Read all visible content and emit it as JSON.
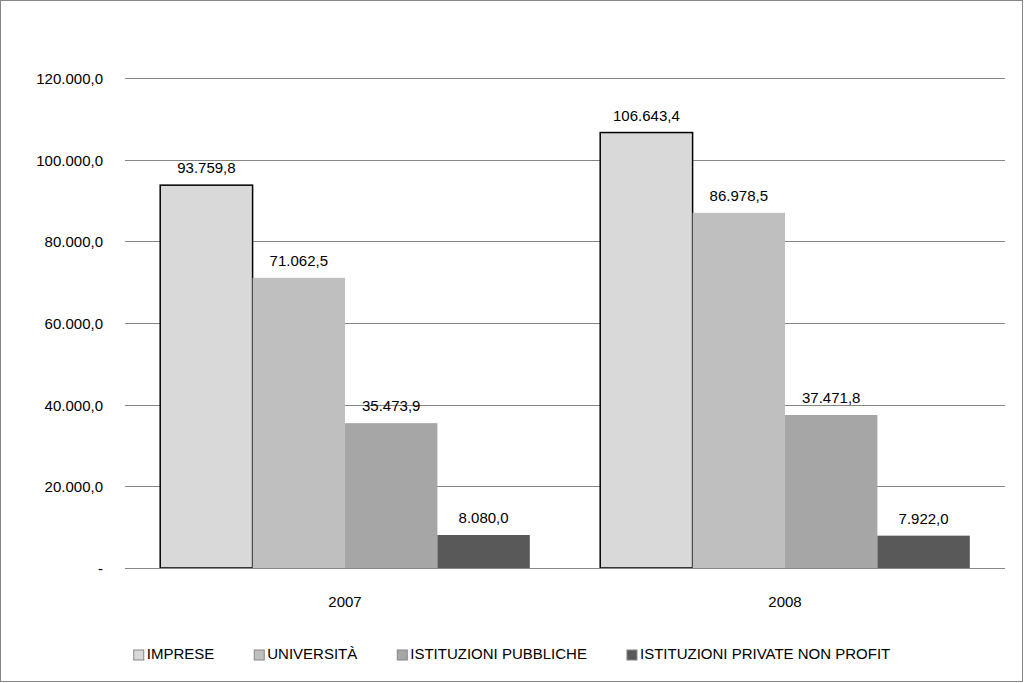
{
  "chart_data": {
    "type": "bar",
    "categories": [
      "2007",
      "2008"
    ],
    "series": [
      {
        "name": "IMPRESE",
        "color": "#d9d9d9",
        "values": [
          93759.8,
          106643.4
        ],
        "value_labels": [
          "93.759,8",
          "106.643,4"
        ]
      },
      {
        "name": "UNIVERSITÀ",
        "color": "#bfbfbf",
        "values": [
          71062.5,
          86978.5
        ],
        "value_labels": [
          "71.062,5",
          "86.978,5"
        ]
      },
      {
        "name": "ISTITUZIONI PUBBLICHE",
        "color": "#a6a6a6",
        "values": [
          35473.9,
          37471.8
        ],
        "value_labels": [
          "35.473,9",
          "37.471,8"
        ]
      },
      {
        "name": "ISTITUZIONI PRIVATE NON PROFIT",
        "color": "#595959",
        "values": [
          8080.0,
          7922.0
        ],
        "value_labels": [
          "8.080,0",
          "7.922,0"
        ]
      }
    ],
    "ylim": [
      0,
      120000
    ],
    "yticks": [
      {
        "value": 0,
        "label": "-"
      },
      {
        "value": 20000,
        "label": "20.000,0"
      },
      {
        "value": 40000,
        "label": "40.000,0"
      },
      {
        "value": 60000,
        "label": "60.000,0"
      },
      {
        "value": 80000,
        "label": "80.000,0"
      },
      {
        "value": 100000,
        "label": "100.000,0"
      },
      {
        "value": 120000,
        "label": "120.000,0"
      }
    ],
    "grid": true,
    "data_labels": true,
    "legend": "bottom"
  }
}
